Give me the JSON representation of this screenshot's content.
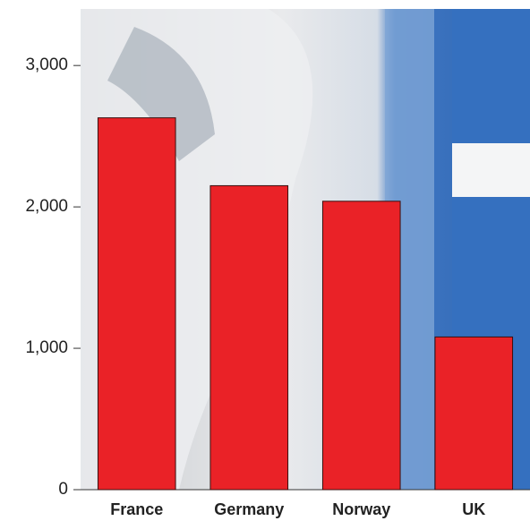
{
  "chart_data": {
    "type": "bar",
    "categories": [
      "France",
      "Germany",
      "Norway",
      "UK"
    ],
    "values": [
      2630,
      2150,
      2040,
      1080
    ],
    "color": "#ea2227",
    "ylim": [
      0,
      3400
    ],
    "yticks": [
      0,
      {
        "value": 1000,
        "label": "1,000"
      },
      {
        "value": 2000,
        "label": "2,000"
      },
      {
        "value": 3000,
        "label": "3,000"
      }
    ],
    "grid": false
  }
}
